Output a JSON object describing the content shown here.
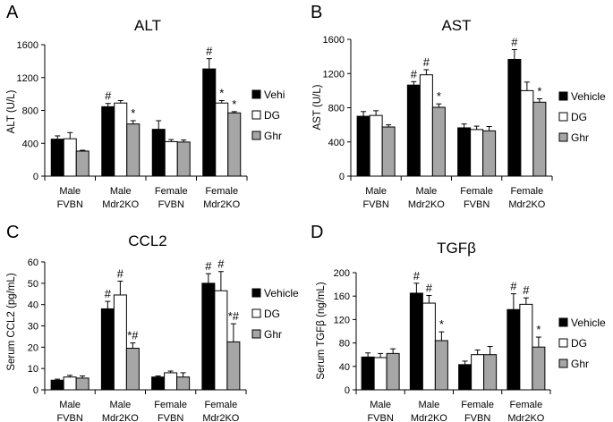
{
  "chart_data": [
    {
      "id": "A",
      "type": "bar",
      "panel_letter": "A",
      "title": "ALT",
      "ylabel": "ALT (U/L)",
      "ylim": [
        0,
        1600
      ],
      "yticks": [
        "0",
        "400",
        "800",
        "1200",
        "1600"
      ],
      "ytick_values": [
        0,
        400,
        800,
        1200,
        1600
      ],
      "categories": [
        [
          "Male",
          "FVBN"
        ],
        [
          "Male",
          "Mdr2KO"
        ],
        [
          "Female",
          "FVBN"
        ],
        [
          "Female",
          "Mdr2KO"
        ]
      ],
      "legend": [
        "Vehi",
        "DG",
        "Ghr"
      ],
      "series": [
        {
          "name": "Vehi",
          "color": "#000000",
          "values": [
            450,
            845,
            570,
            1305
          ],
          "errors": [
            40,
            40,
            105,
            125
          ],
          "labels": [
            "",
            "#",
            "",
            "#"
          ]
        },
        {
          "name": "DG",
          "color": "#ffffff",
          "values": [
            455,
            890,
            420,
            890
          ],
          "errors": [
            75,
            30,
            25,
            30
          ],
          "labels": [
            "",
            "",
            "",
            "*"
          ]
        },
        {
          "name": "Ghr",
          "color": "#a6a6a6",
          "values": [
            305,
            635,
            415,
            770
          ],
          "errors": [
            10,
            40,
            25,
            15
          ],
          "labels": [
            "",
            "*",
            "",
            "*"
          ]
        }
      ]
    },
    {
      "id": "B",
      "type": "bar",
      "panel_letter": "B",
      "title": "AST",
      "ylabel": "AST (U/L)",
      "ylim": [
        0,
        1600
      ],
      "yticks": [
        "0",
        "400",
        "800",
        "1200",
        "1600"
      ],
      "ytick_values": [
        0,
        400,
        800,
        1200,
        1600
      ],
      "categories": [
        [
          "Male",
          "FVBN"
        ],
        [
          "Male",
          "Mdr2KO"
        ],
        [
          "Female",
          "FVBN"
        ],
        [
          "Female",
          "Mdr2KO"
        ]
      ],
      "legend": [
        "Vehicle",
        "DG",
        "Ghr"
      ],
      "series": [
        {
          "name": "Vehicle",
          "color": "#000000",
          "values": [
            700,
            1065,
            565,
            1365
          ],
          "errors": [
            55,
            40,
            45,
            115
          ],
          "labels": [
            "",
            "#",
            "",
            "#"
          ]
        },
        {
          "name": "DG",
          "color": "#ffffff",
          "values": [
            710,
            1185,
            545,
            1000
          ],
          "errors": [
            55,
            60,
            40,
            100
          ],
          "labels": [
            "",
            "#",
            "",
            ""
          ]
        },
        {
          "name": "Ghr",
          "color": "#a6a6a6",
          "values": [
            575,
            805,
            530,
            865
          ],
          "errors": [
            25,
            40,
            50,
            40
          ],
          "labels": [
            "",
            "*",
            "",
            "*"
          ]
        }
      ]
    },
    {
      "id": "C",
      "type": "bar",
      "panel_letter": "C",
      "title": "CCL2",
      "ylabel": "Serum CCL2 (pg/mL)",
      "ylim": [
        0,
        60
      ],
      "yticks": [
        "0",
        "10",
        "20",
        "30",
        "40",
        "50",
        "60"
      ],
      "ytick_values": [
        0,
        10,
        20,
        30,
        40,
        50,
        60
      ],
      "categories": [
        [
          "Male",
          "FVBN"
        ],
        [
          "Male",
          "Mdr2KO"
        ],
        [
          "Female",
          "FVBN"
        ],
        [
          "Female",
          "Mdr2KO"
        ]
      ],
      "legend": [
        "Vehicle",
        "DG",
        "Ghr"
      ],
      "series": [
        {
          "name": "Vehicle",
          "color": "#000000",
          "values": [
            4.5,
            38,
            6,
            50
          ],
          "errors": [
            0.5,
            3.5,
            0.5,
            4.5
          ],
          "labels": [
            "",
            "#",
            "",
            "#"
          ]
        },
        {
          "name": "DG",
          "color": "#ffffff",
          "values": [
            6,
            44.5,
            8,
            46.5
          ],
          "errors": [
            0.8,
            6.5,
            0.8,
            9
          ],
          "labels": [
            "",
            "#",
            "",
            "#"
          ]
        },
        {
          "name": "Ghr",
          "color": "#a6a6a6",
          "values": [
            5.5,
            19.5,
            6,
            22.5
          ],
          "errors": [
            1,
            2.5,
            2,
            8.5
          ],
          "labels": [
            "",
            "*#",
            "",
            "*#"
          ]
        }
      ]
    },
    {
      "id": "D",
      "type": "bar",
      "panel_letter": "D",
      "title": "TGFβ",
      "ylabel": "Serum TGFβ (ng/mL)",
      "ylim": [
        0,
        200
      ],
      "yticks": [
        "0",
        "40",
        "80",
        "120",
        "160",
        "200"
      ],
      "ytick_values": [
        0,
        40,
        80,
        120,
        160,
        200
      ],
      "categories": [
        [
          "Male",
          "FVBN"
        ],
        [
          "Male",
          "Mdr2KO"
        ],
        [
          "Female",
          "FVBN"
        ],
        [
          "Female",
          "Mdr2KO"
        ]
      ],
      "legend": [
        "Vehicle",
        "DG",
        "Ghr"
      ],
      "series": [
        {
          "name": "Vehicle",
          "color": "#000000",
          "values": [
            56,
            165,
            43,
            137
          ],
          "errors": [
            7,
            17,
            6,
            27
          ],
          "labels": [
            "",
            "#",
            "",
            "#"
          ]
        },
        {
          "name": "DG",
          "color": "#ffffff",
          "values": [
            55,
            148,
            60,
            146
          ],
          "errors": [
            7,
            13,
            8,
            11
          ],
          "labels": [
            "",
            "#",
            "",
            "#"
          ]
        },
        {
          "name": "Ghr",
          "color": "#a6a6a6",
          "values": [
            62,
            84,
            60,
            73
          ],
          "errors": [
            8,
            15,
            14,
            17
          ],
          "labels": [
            "",
            "*",
            "",
            "*"
          ]
        }
      ]
    }
  ]
}
